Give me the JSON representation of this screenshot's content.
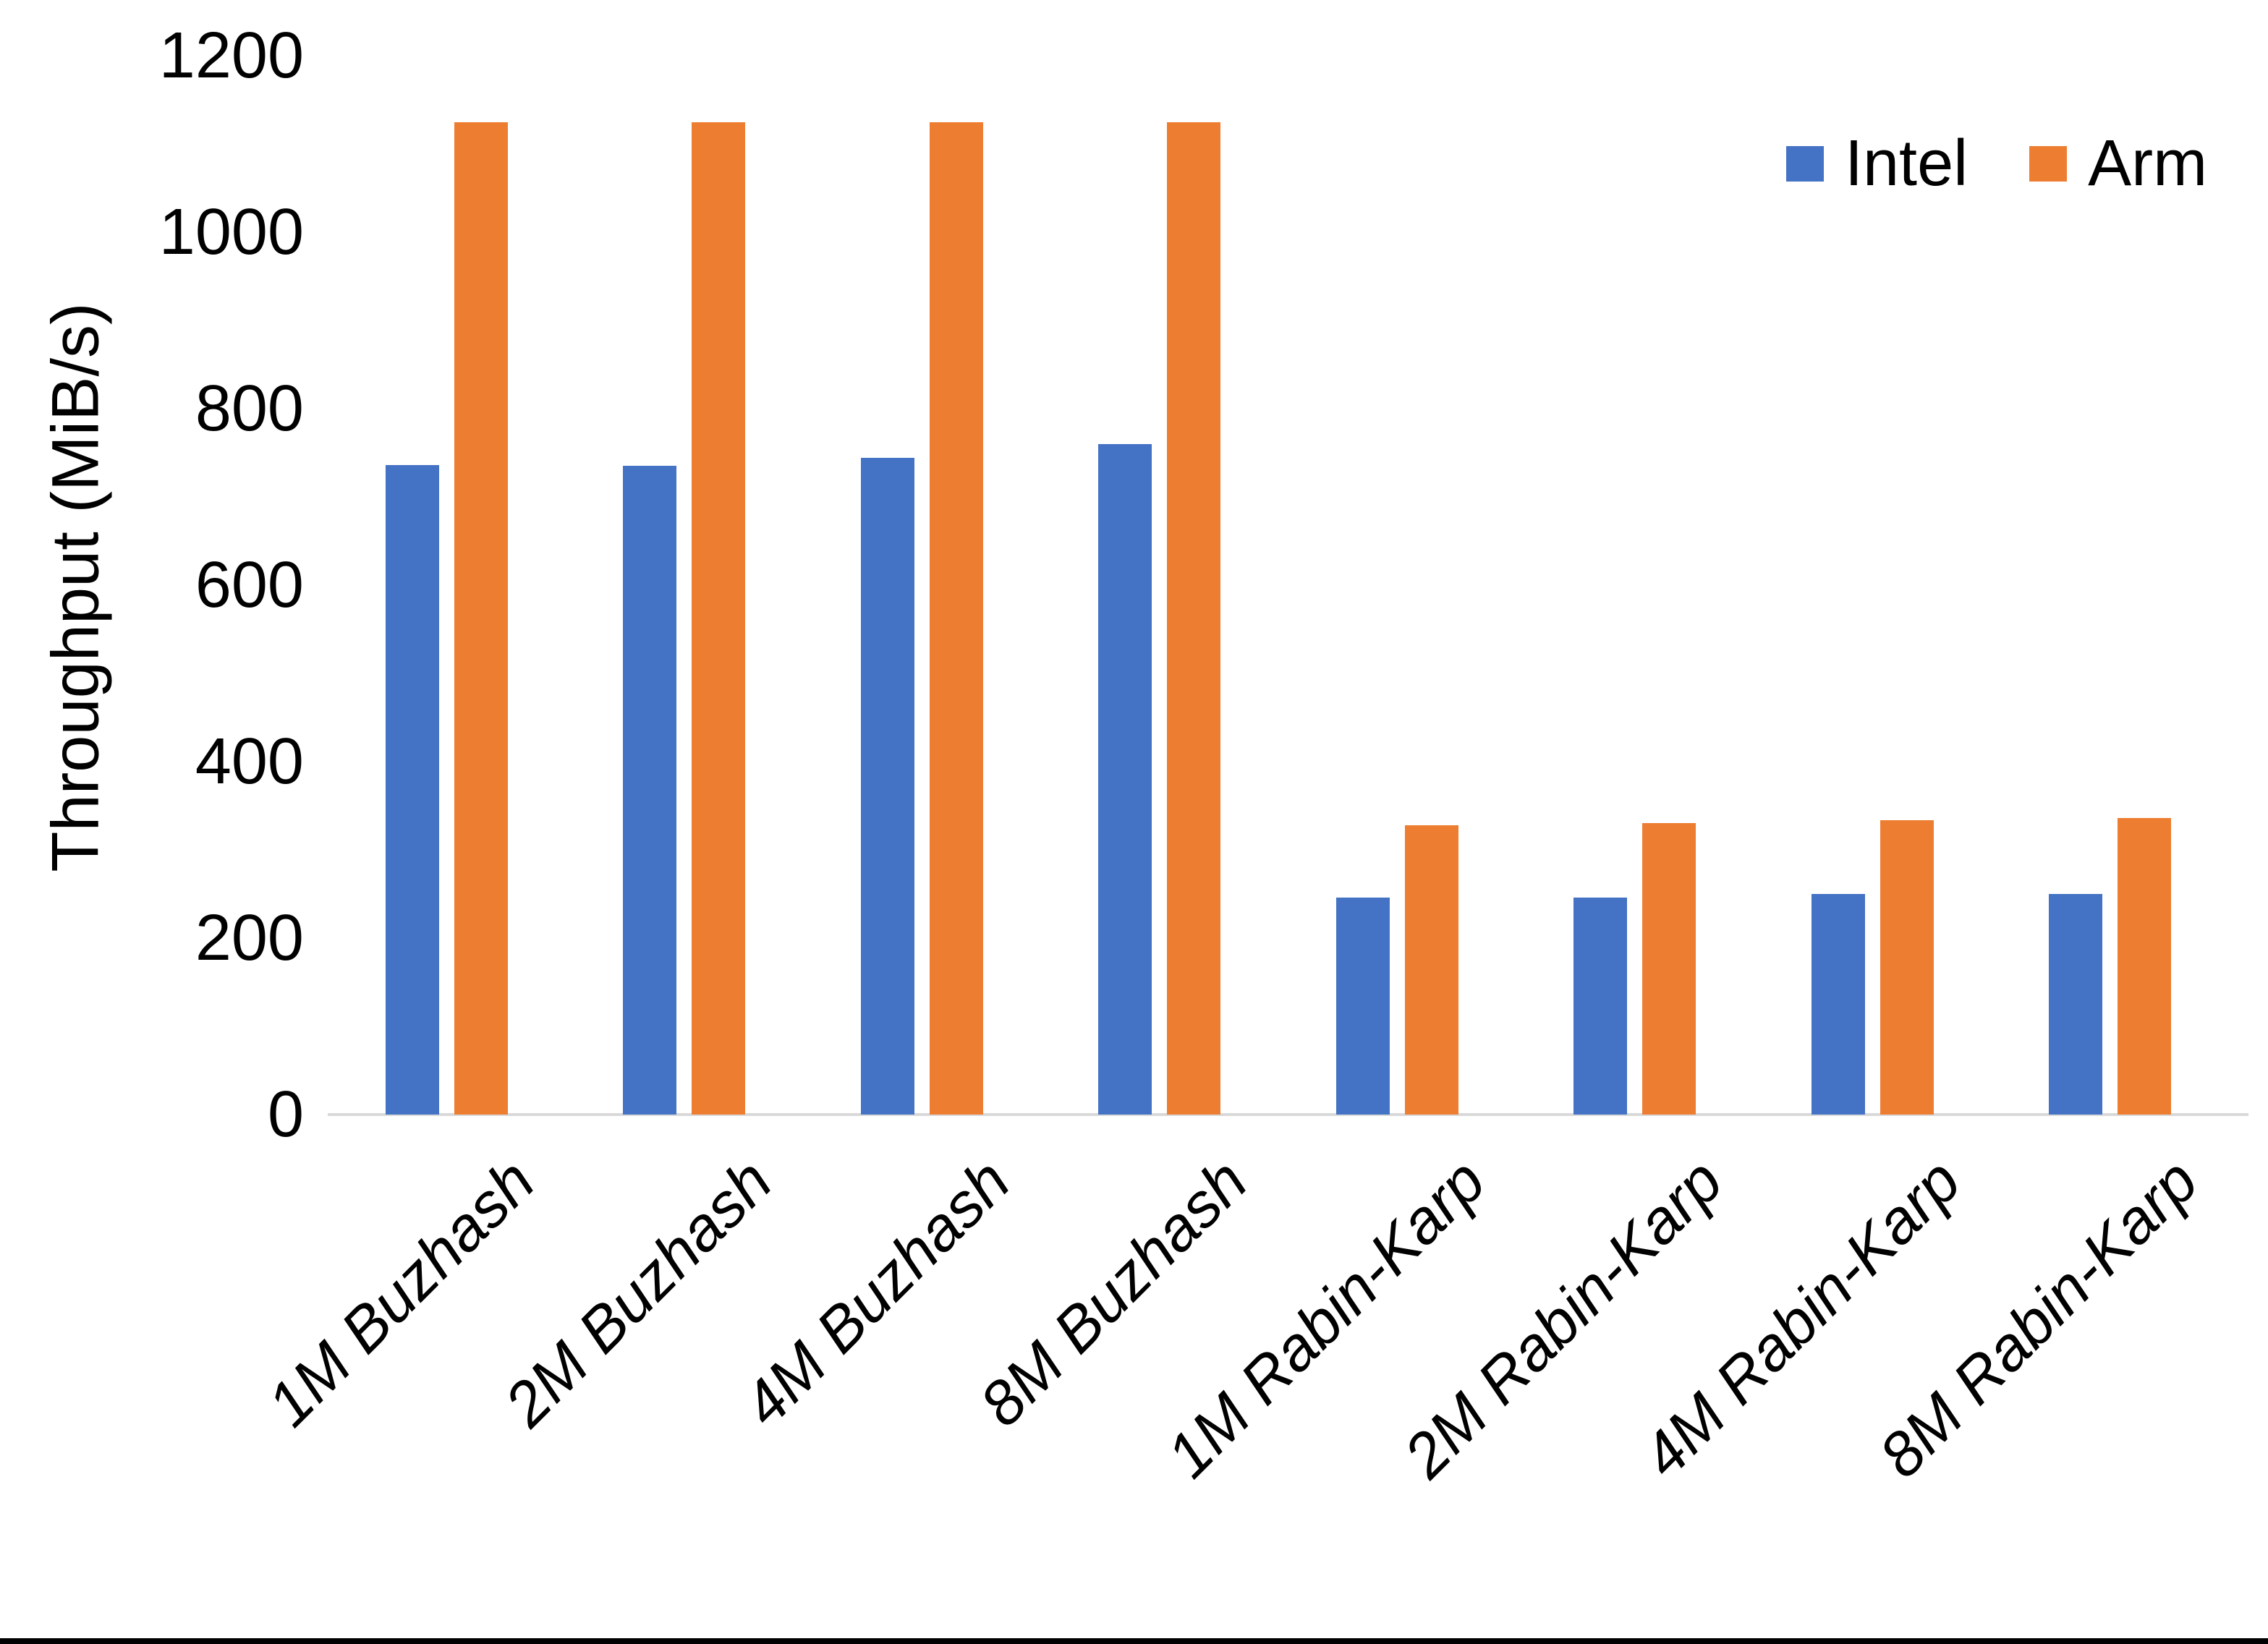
{
  "chart_data": {
    "type": "bar",
    "title": "",
    "xlabel": "",
    "ylabel": "Throughput (MiB/s)",
    "ylim": [
      0,
      1200
    ],
    "yticks": [
      0,
      200,
      400,
      600,
      800,
      1000,
      1200
    ],
    "categories": [
      "1M Buzhash",
      "2M Buzhash",
      "4M Buzhash",
      "8M Buzhash",
      "1M Rabin-Karp",
      "2M Rabin-Karp",
      "4M Rabin-Karp",
      "8M Rabin-Karp"
    ],
    "series": [
      {
        "name": "Intel",
        "color": "#4472C4",
        "values": [
          736,
          735,
          744,
          760,
          246,
          246,
          250,
          250
        ]
      },
      {
        "name": "Arm",
        "color": "#ED7D31",
        "values": [
          1125,
          1125,
          1125,
          1125,
          328,
          330,
          334,
          336
        ]
      }
    ],
    "legend": {
      "position": "top-right",
      "entries": [
        "Intel",
        "Arm"
      ]
    },
    "grid": false,
    "axis_line_color": "#D9D9D9",
    "text_color": "#000000",
    "background_color": "#FFFFFF"
  }
}
